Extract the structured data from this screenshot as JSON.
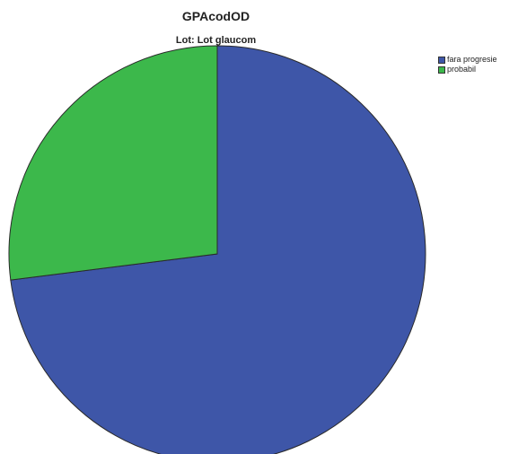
{
  "chart_data": {
    "type": "pie",
    "title": "GPAcodOD",
    "subtitle": "Lot: Lot glaucom",
    "legend_position": "top-right",
    "series": [
      {
        "name": "fara progresie",
        "value": 73,
        "color": "#3e56a8"
      },
      {
        "name": "probabil",
        "value": 27,
        "color": "#3cb84b"
      }
    ]
  }
}
